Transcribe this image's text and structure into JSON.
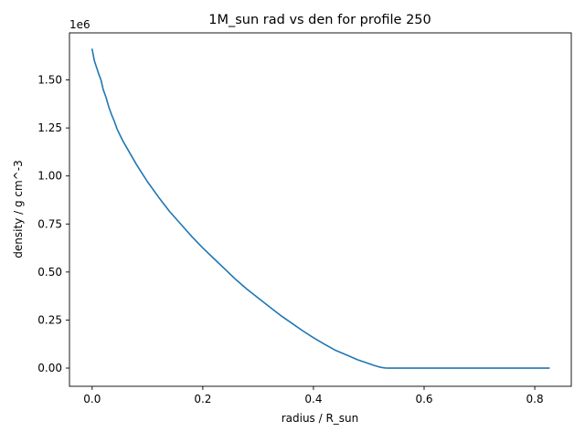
{
  "chart_data": {
    "type": "line",
    "title": "1M_sun rad vs den for profile 250",
    "xlabel": "radius / R_sun",
    "ylabel": "density / g cm^-3",
    "y_offset_label": "1e6",
    "xlim": [
      -0.041,
      0.866
    ],
    "ylim": [
      -95000,
      1745000
    ],
    "x_ticks": [
      0.0,
      0.2,
      0.4,
      0.6,
      0.8
    ],
    "x_tick_labels": [
      "0.0",
      "0.2",
      "0.4",
      "0.6",
      "0.8"
    ],
    "y_ticks": [
      0,
      250000,
      500000,
      750000,
      1000000,
      1250000,
      1500000
    ],
    "y_tick_labels": [
      "0.00",
      "0.25",
      "0.50",
      "0.75",
      "1.00",
      "1.25",
      "1.50"
    ],
    "grid": false,
    "line_color": "#1f77b4",
    "series": [
      {
        "x": [
          0.0,
          0.004,
          0.008,
          0.012,
          0.016,
          0.02,
          0.025,
          0.03,
          0.035,
          0.04,
          0.045,
          0.05,
          0.055,
          0.06,
          0.07,
          0.08,
          0.09,
          0.1,
          0.12,
          0.14,
          0.16,
          0.18,
          0.2,
          0.22,
          0.24,
          0.26,
          0.28,
          0.3,
          0.32,
          0.34,
          0.36,
          0.38,
          0.4,
          0.42,
          0.44,
          0.46,
          0.48,
          0.5,
          0.51,
          0.52,
          0.525,
          0.53,
          0.535,
          0.54,
          0.56,
          0.6,
          0.65,
          0.7,
          0.75,
          0.8,
          0.826
        ],
        "y": [
          1660000,
          1600000,
          1565000,
          1530000,
          1500000,
          1450000,
          1410000,
          1360000,
          1320000,
          1285000,
          1245000,
          1215000,
          1185000,
          1160000,
          1110000,
          1060000,
          1015000,
          970000,
          890000,
          815000,
          750000,
          685000,
          625000,
          570000,
          515000,
          460000,
          410000,
          365000,
          320000,
          275000,
          235000,
          195000,
          158000,
          124000,
          92000,
          68000,
          43000,
          23000,
          13000,
          5000,
          2000,
          500,
          0,
          0,
          0,
          0,
          0,
          0,
          0,
          0,
          0
        ]
      }
    ]
  }
}
